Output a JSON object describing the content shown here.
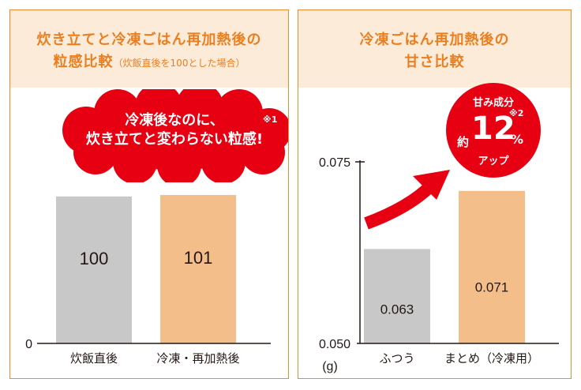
{
  "left_panel": {
    "title_line1": "炊き立てと冷凍ごはん再加熱後の",
    "title_line2": "粒感比較",
    "title_note": "（炊飯直後を100とした場合）",
    "callout_line1": "冷凍後なのに、",
    "callout_line2": "炊き立てと変わらない粒感!",
    "callout_note": "※1"
  },
  "right_panel": {
    "title_line1": "冷凍ごはん再加熱後の",
    "title_line2": "甘さ比較",
    "badge_line1": "甘み成分",
    "badge_note": "※2",
    "badge_prefix": "約",
    "badge_number": "12",
    "badge_unit": "%",
    "badge_line3": "アップ"
  },
  "colors": {
    "accent_orange": "#ea7f20",
    "header_bg": "#fdebd9",
    "callout_red": "#e60012",
    "bar_gray": "#c8c8c8",
    "bar_orange": "#f4be8a"
  },
  "chart_data": [
    {
      "type": "bar",
      "categories": [
        "炊飯直後",
        "冷凍・再加熱後"
      ],
      "values": [
        100,
        101
      ],
      "value_labels": [
        "100",
        "101"
      ],
      "y_tick_labels": [
        "0"
      ],
      "ylim": [
        0,
        130
      ],
      "colors": [
        "#c8c8c8",
        "#f4be8a"
      ],
      "grid": false
    },
    {
      "type": "bar",
      "categories": [
        "ふつう",
        "まとめ（冷凍用）"
      ],
      "values": [
        0.063,
        0.071
      ],
      "value_labels": [
        "0.063",
        "0.071"
      ],
      "y_tick_labels": [
        "0.050",
        "0.075"
      ],
      "ylim": [
        0.05,
        0.075
      ],
      "unit": "(g)",
      "colors": [
        "#c8c8c8",
        "#f4be8a"
      ],
      "grid": false
    }
  ]
}
